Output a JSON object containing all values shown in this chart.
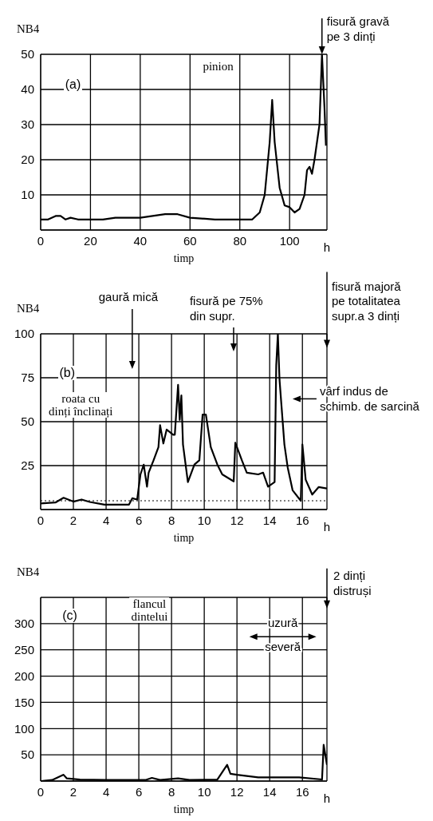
{
  "chart_data": [
    {
      "type": "line",
      "title": "(a)",
      "subtitle": "pinion",
      "xlabel": "timp",
      "ylabel": "NB4",
      "color": "#000000",
      "grid": true,
      "marker": "none",
      "line_style": "solid",
      "xlim": [
        0,
        115
      ],
      "ylim": [
        0,
        50
      ],
      "xticks": [
        0,
        20,
        40,
        60,
        80,
        100
      ],
      "yticks": [
        10,
        20,
        30,
        40,
        50
      ],
      "x": [
        0,
        3,
        6,
        8,
        10,
        12,
        15,
        20,
        25,
        30,
        40,
        45,
        50,
        55,
        60,
        70,
        80,
        85,
        88,
        90,
        92,
        93,
        94,
        96,
        98,
        100,
        102,
        104,
        106,
        107,
        108,
        109,
        110,
        112,
        113,
        114,
        114.6
      ],
      "values": [
        3,
        3,
        4,
        4,
        3,
        3.5,
        3,
        3,
        3,
        3.5,
        3.5,
        4,
        4.5,
        4.5,
        3.5,
        3,
        3,
        3,
        5,
        10,
        25,
        37,
        25,
        12,
        7,
        6.5,
        5,
        6,
        10,
        17,
        18,
        16,
        20,
        30,
        50,
        35,
        24
      ],
      "annotations": [
        {
          "text": "fisură gravă\npe 3 dinți",
          "x": 113,
          "y": 50
        },
        "h"
      ]
    },
    {
      "type": "line",
      "title": "(b)",
      "subtitle": "roata cu\ndinți înclinați",
      "xlabel": "timp",
      "ylabel": "NB4",
      "color": "#000000",
      "grid": true,
      "marker": "none",
      "line_style": "solid",
      "xlim": [
        0,
        17.5
      ],
      "ylim": [
        0,
        100
      ],
      "xticks": [
        0,
        2,
        4,
        6,
        8,
        10,
        12,
        14,
        16
      ],
      "yticks": [
        25,
        50,
        75,
        100
      ],
      "x": [
        0,
        0.9,
        1.4,
        2,
        2.5,
        3,
        3.9,
        5.4,
        5.6,
        5.9,
        6.1,
        6.3,
        6.5,
        6.6,
        6.9,
        7.2,
        7.3,
        7.5,
        7.7,
        8.1,
        8.2,
        8.4,
        8.5,
        8.6,
        8.7,
        9,
        9.4,
        9.7,
        9.9,
        10.1,
        10.4,
        10.8,
        11.1,
        11.8,
        11.9,
        12.3,
        12.6,
        13.3,
        13.6,
        13.9,
        14.3,
        14.4,
        14.5,
        14.6,
        14.9,
        15.1,
        15.4,
        15.9,
        16,
        16.2,
        16.6,
        17,
        17.5
      ],
      "values": [
        3.5,
        4,
        6.7,
        4.5,
        5.7,
        4.3,
        2.8,
        2.8,
        6.4,
        5.7,
        20,
        25.5,
        13,
        21,
        28,
        35.5,
        48,
        37.6,
        45.5,
        42.6,
        42.6,
        71,
        51,
        65,
        37,
        15.6,
        25.6,
        28,
        54,
        54,
        35.5,
        25.6,
        20,
        16,
        38,
        28,
        21,
        20,
        21,
        13,
        15.6,
        82,
        100,
        74,
        37,
        24,
        11,
        5,
        37,
        17,
        8.5,
        12.8,
        12
      ],
      "ref_lines": [
        {
          "axis": "y",
          "value": 5,
          "line_style": "dotted",
          "color": "#000000"
        }
      ],
      "annotations": [
        "gaură mică",
        "fisură pe 75%\ndin supr.",
        "fisură majoră\npe totalitatea\nsupr.a 3 dinți",
        "vârf indus de\nschimb. de sarcină",
        "h"
      ]
    },
    {
      "type": "line",
      "title": "(c)",
      "subtitle": "flancul\ndintelui",
      "xlabel": "timp",
      "ylabel": "NB4",
      "color": "#000000",
      "grid": true,
      "marker": "none",
      "line_style": "solid",
      "xlim": [
        0,
        17.5
      ],
      "ylim": [
        0,
        350
      ],
      "xticks": [
        0,
        2,
        4,
        6,
        8,
        10,
        12,
        14,
        16
      ],
      "yticks": [
        50,
        100,
        150,
        200,
        250,
        300
      ],
      "x": [
        0,
        0.7,
        1.4,
        1.6,
        2.4,
        4.1,
        6.4,
        6.8,
        7.3,
        8.4,
        9.1,
        10.8,
        11.1,
        11.4,
        11.6,
        12,
        13.3,
        15.8,
        17.2,
        17.3,
        17.5
      ],
      "values": [
        0,
        2,
        12,
        5,
        3,
        2,
        2,
        6,
        2,
        5,
        2,
        3,
        17,
        31,
        14,
        12,
        7,
        7,
        3,
        69,
        31
      ],
      "annotations": [
        "uzură\nseveră",
        "2 dinți\ndistruși",
        "h"
      ]
    }
  ]
}
